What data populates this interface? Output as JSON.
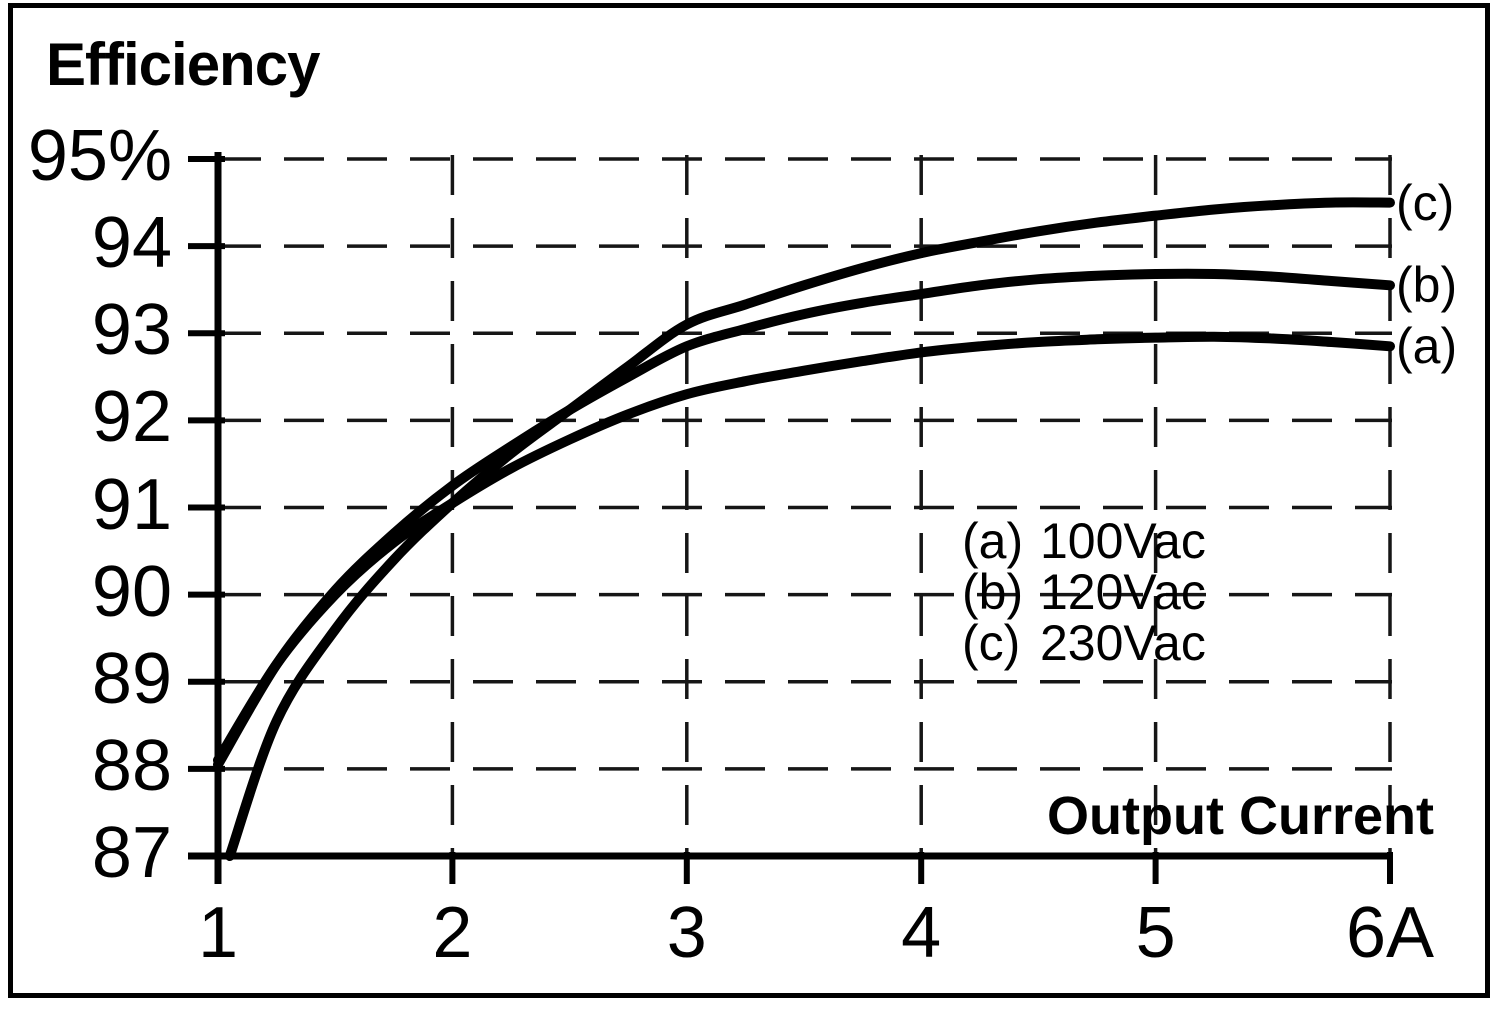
{
  "chart_data": {
    "type": "line",
    "title": "Efficiency",
    "xlabel": "Output Current",
    "xlim": [
      1,
      6
    ],
    "ylim": [
      87,
      95
    ],
    "grid": "dashed",
    "x_ticks": [
      {
        "value": 1,
        "label": "1"
      },
      {
        "value": 2,
        "label": "2"
      },
      {
        "value": 3,
        "label": "3"
      },
      {
        "value": 4,
        "label": "4"
      },
      {
        "value": 5,
        "label": "5"
      },
      {
        "value": 6,
        "label": "6A"
      }
    ],
    "y_ticks": [
      {
        "value": 95,
        "label": "95%"
      },
      {
        "value": 94,
        "label": "94"
      },
      {
        "value": 93,
        "label": "93"
      },
      {
        "value": 92,
        "label": "92"
      },
      {
        "value": 91,
        "label": "91"
      },
      {
        "value": 90,
        "label": "90"
      },
      {
        "value": 89,
        "label": "89"
      },
      {
        "value": 88,
        "label": "88"
      },
      {
        "value": 87,
        "label": "87"
      }
    ],
    "legend": {
      "position": "inside-right",
      "items": [
        {
          "series": "a",
          "key": "(a)",
          "label": "100Vac"
        },
        {
          "series": "b",
          "key": "(b)",
          "label": "120Vac"
        },
        {
          "series": "c",
          "key": "(c)",
          "label": "230Vac"
        }
      ]
    },
    "series": [
      {
        "id": "a",
        "name": "100Vac",
        "end_label": "(a)",
        "points": [
          [
            1,
            88.1
          ],
          [
            1.25,
            89.2
          ],
          [
            1.5,
            90.0
          ],
          [
            1.75,
            90.6
          ],
          [
            2,
            91.05
          ],
          [
            2.25,
            91.45
          ],
          [
            2.5,
            91.78
          ],
          [
            2.75,
            92.07
          ],
          [
            3,
            92.3
          ],
          [
            3.25,
            92.45
          ],
          [
            3.5,
            92.57
          ],
          [
            3.75,
            92.68
          ],
          [
            4,
            92.78
          ],
          [
            4.25,
            92.85
          ],
          [
            4.5,
            92.9
          ],
          [
            4.75,
            92.93
          ],
          [
            5,
            92.95
          ],
          [
            5.25,
            92.96
          ],
          [
            5.5,
            92.94
          ],
          [
            5.75,
            92.9
          ],
          [
            6,
            92.85
          ]
        ]
      },
      {
        "id": "b",
        "name": "120Vac",
        "end_label": "(b)",
        "points": [
          [
            1,
            88.05
          ],
          [
            1.25,
            89.2
          ],
          [
            1.5,
            90.05
          ],
          [
            1.75,
            90.7
          ],
          [
            2,
            91.25
          ],
          [
            2.25,
            91.7
          ],
          [
            2.5,
            92.12
          ],
          [
            2.75,
            92.5
          ],
          [
            3,
            92.85
          ],
          [
            3.25,
            93.05
          ],
          [
            3.5,
            93.22
          ],
          [
            3.75,
            93.35
          ],
          [
            4,
            93.45
          ],
          [
            4.25,
            93.55
          ],
          [
            4.5,
            93.62
          ],
          [
            4.75,
            93.66
          ],
          [
            5,
            93.68
          ],
          [
            5.25,
            93.68
          ],
          [
            5.5,
            93.65
          ],
          [
            5.75,
            93.6
          ],
          [
            6,
            93.55
          ]
        ]
      },
      {
        "id": "c",
        "name": "230Vac",
        "end_label": "(c)",
        "points": [
          [
            1.05,
            87.0
          ],
          [
            1.25,
            88.55
          ],
          [
            1.5,
            89.6
          ],
          [
            1.75,
            90.4
          ],
          [
            2,
            91.05
          ],
          [
            2.25,
            91.62
          ],
          [
            2.5,
            92.12
          ],
          [
            2.75,
            92.62
          ],
          [
            3,
            93.1
          ],
          [
            3.25,
            93.33
          ],
          [
            3.5,
            93.55
          ],
          [
            3.75,
            93.75
          ],
          [
            4,
            93.92
          ],
          [
            4.25,
            94.05
          ],
          [
            4.5,
            94.17
          ],
          [
            4.75,
            94.27
          ],
          [
            5,
            94.35
          ],
          [
            5.25,
            94.42
          ],
          [
            5.5,
            94.47
          ],
          [
            5.75,
            94.5
          ],
          [
            6,
            94.5
          ]
        ]
      }
    ],
    "colors": {
      "curve": "#000000",
      "grid": "#161616",
      "text": "#000000",
      "background": "#ffffff",
      "border": "#000000"
    }
  }
}
